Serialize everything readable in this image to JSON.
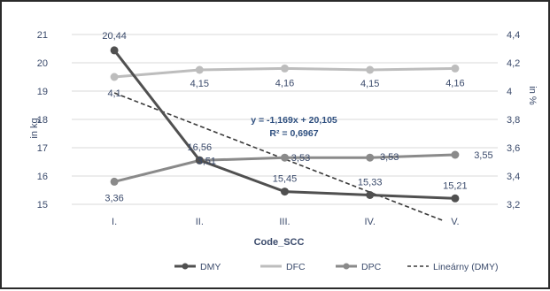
{
  "chart_data": {
    "type": "line",
    "categories": [
      "I.",
      "II.",
      "III.",
      "IV.",
      "V."
    ],
    "xlabel": "Code_SCC",
    "ylabel_left": "in kg",
    "ylabel_right": "in %",
    "ylim_left": [
      15,
      21
    ],
    "ylim_right": [
      3.2,
      4.4
    ],
    "yticks_left": [
      "15",
      "16",
      "17",
      "18",
      "19",
      "20",
      "21"
    ],
    "yticks_right": [
      "3,2",
      "3,4",
      "3,6",
      "3,8",
      "4",
      "4,2",
      "4,4"
    ],
    "grid": true,
    "legend_position": "bottom",
    "series": [
      {
        "name": "DMY",
        "axis": "left",
        "color": "#505050",
        "values": [
          20.44,
          16.56,
          15.45,
          15.33,
          15.21
        ],
        "labels": [
          "20,44",
          "16,56",
          "15,45",
          "15,33",
          "15,21"
        ]
      },
      {
        "name": "DFC",
        "axis": "right",
        "color": "#bdbdbd",
        "values": [
          4.1,
          4.15,
          4.16,
          4.15,
          4.16
        ],
        "labels": [
          "4,1",
          "4,15",
          "4,16",
          "4,15",
          "4,16"
        ]
      },
      {
        "name": "DPC",
        "axis": "right",
        "color": "#8a8a8a",
        "values": [
          3.36,
          3.51,
          3.53,
          3.53,
          3.55
        ],
        "labels": [
          "3,36",
          "3,51",
          "3,53",
          "3,53",
          "3,55"
        ]
      }
    ],
    "trendline": {
      "name": "Lineárny (DMY)",
      "slope": -1.169,
      "intercept": 20.105,
      "x_range": [
        1,
        4.85
      ],
      "equation": "y = -1,169x + 20,105",
      "r_squared": "R² = 0,6967"
    }
  }
}
